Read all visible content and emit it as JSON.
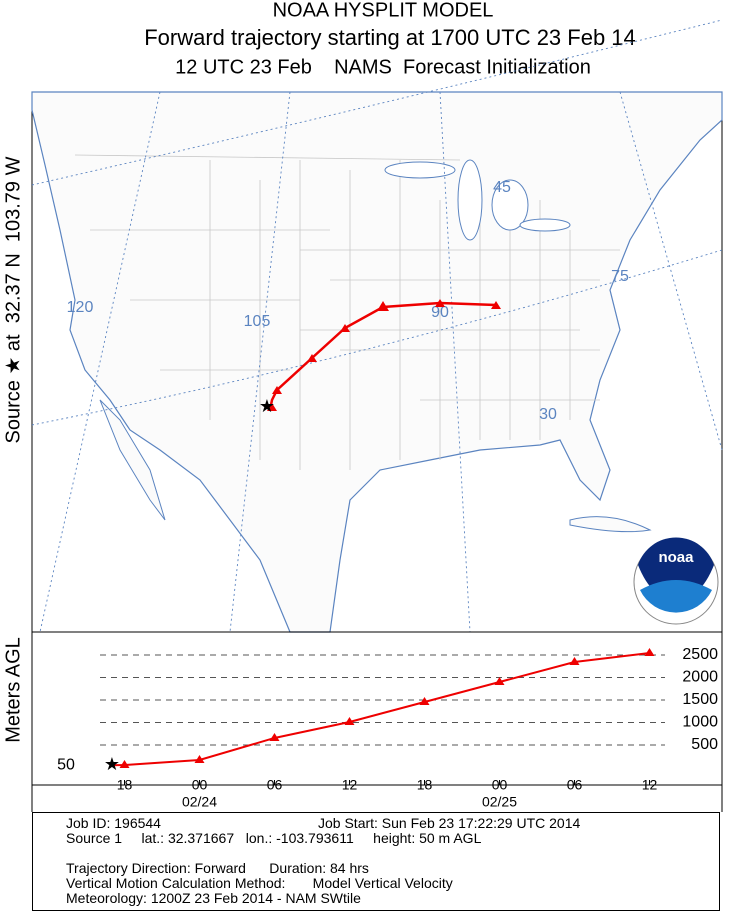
{
  "header": {
    "title": "NOAA HYSPLIT MODEL",
    "subtitle": "Forward trajectory starting at 1700 UTC 23 Feb 14",
    "subtitle2": "12 UTC 23 Feb    NAMS  Forecast Initialization"
  },
  "map": {
    "source_label": "Source ★ at  32.37 N  103.79 W",
    "grid_labels": [
      "120",
      "105",
      "90",
      "75",
      "45",
      "30"
    ],
    "logo": "noaa"
  },
  "chart_data": {
    "type": "line",
    "ylabel": "Meters AGL",
    "x": [
      0,
      1,
      7,
      13,
      19,
      25,
      31,
      37,
      43
    ],
    "series": [
      {
        "name": "Source 1",
        "color": "#ee0000",
        "values": [
          50,
          55,
          167,
          656,
          1011,
          1456,
          1900,
          2344,
          2544
        ]
      }
    ],
    "xlim": [
      -6.4,
      48.8
    ],
    "ylim": [
      -389,
      2922
    ],
    "xticks": [
      {
        "value": 1,
        "label": "18"
      },
      {
        "value": 7,
        "label": "00"
      },
      {
        "value": 13,
        "label": "06"
      },
      {
        "value": 19,
        "label": "12"
      },
      {
        "value": 25,
        "label": "18"
      },
      {
        "value": 31,
        "label": "00"
      },
      {
        "value": 37,
        "label": "06"
      },
      {
        "value": 43,
        "label": "12"
      }
    ],
    "date_labels": [
      {
        "value": 7,
        "label": "02/24"
      },
      {
        "value": 31,
        "label": "02/25"
      }
    ],
    "yticks": [
      500,
      1000,
      1500,
      2000,
      2500
    ],
    "grid": true
  },
  "footer": {
    "lines": [
      [
        "Job ID: 196544",
        "Job Start: Sun Feb 23 17:22:29 UTC 2014"
      ],
      [
        "Source 1     lat.: 32.371667   lon.: -103.793611     height: 50 m AGL"
      ],
      [
        "Trajectory Direction: Forward      Duration: 84 hrs"
      ],
      [
        "Vertical Motion Calculation Method:       Model Vertical Velocity"
      ],
      [
        "Meteorology: 1200Z 23 Feb 2014 - NAM SWtile"
      ]
    ]
  }
}
